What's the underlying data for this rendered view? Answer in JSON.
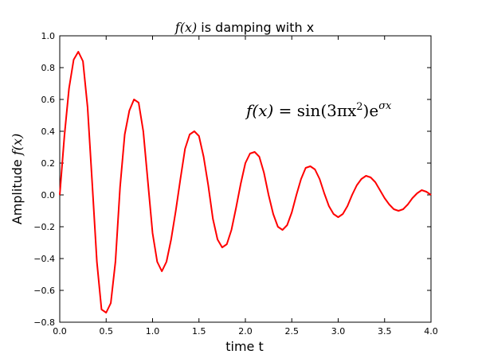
{
  "chart_data": {
    "type": "line",
    "title_math": "f(x)",
    "title_text": " is damping  with x",
    "xlabel": "time  t",
    "ylabel_text": "Amplitude  ",
    "ylabel_math": "f(x)",
    "annotation": "f(x) = sin(3πx²)e^(σx)",
    "annotation_parts": {
      "lhs": "f(x) = ",
      "sin": "sin",
      "arg": "(3πx",
      "arg_sup": "2",
      "arg_close": ")e",
      "exp": "σx"
    },
    "xlim": [
      0.0,
      4.0
    ],
    "ylim": [
      -0.8,
      1.0
    ],
    "xticks": [
      "0.0",
      "0.5",
      "1.0",
      "1.5",
      "2.0",
      "2.5",
      "3.0",
      "3.5",
      "4.0"
    ],
    "yticks": [
      "−0.8",
      "−0.6",
      "−0.4",
      "−0.2",
      "0.0",
      "0.2",
      "0.4",
      "0.6",
      "0.8",
      "1.0"
    ],
    "grid": false,
    "series": [
      {
        "color": "#ff0000",
        "x": [
          0.0,
          0.05,
          0.1,
          0.15,
          0.2,
          0.25,
          0.3,
          0.35,
          0.4,
          0.45,
          0.5,
          0.55,
          0.6,
          0.65,
          0.7,
          0.75,
          0.8,
          0.85,
          0.9,
          0.95,
          1.0,
          1.05,
          1.1,
          1.15,
          1.2,
          1.25,
          1.3,
          1.35,
          1.4,
          1.45,
          1.5,
          1.55,
          1.6,
          1.65,
          1.7,
          1.75,
          1.8,
          1.85,
          1.9,
          1.95,
          2.0,
          2.05,
          2.1,
          2.15,
          2.2,
          2.25,
          2.3,
          2.35,
          2.4,
          2.45,
          2.5,
          2.55,
          2.6,
          2.65,
          2.7,
          2.75,
          2.8,
          2.85,
          2.9,
          2.95,
          3.0,
          3.05,
          3.1,
          3.15,
          3.2,
          3.25,
          3.3,
          3.35,
          3.4,
          3.45,
          3.5,
          3.55,
          3.6,
          3.65,
          3.7,
          3.75,
          3.8,
          3.85,
          3.9,
          3.95,
          4.0
        ],
        "y": [
          0.0,
          0.37,
          0.67,
          0.85,
          0.9,
          0.84,
          0.55,
          0.07,
          -0.42,
          -0.72,
          -0.74,
          -0.68,
          -0.42,
          0.05,
          0.38,
          0.53,
          0.6,
          0.58,
          0.4,
          0.08,
          -0.24,
          -0.42,
          -0.48,
          -0.42,
          -0.28,
          -0.1,
          0.1,
          0.29,
          0.38,
          0.4,
          0.37,
          0.24,
          0.06,
          -0.15,
          -0.28,
          -0.33,
          -0.31,
          -0.22,
          -0.08,
          0.07,
          0.2,
          0.26,
          0.27,
          0.24,
          0.14,
          0.0,
          -0.12,
          -0.2,
          -0.22,
          -0.19,
          -0.11,
          0.0,
          0.1,
          0.17,
          0.18,
          0.16,
          0.1,
          0.01,
          -0.07,
          -0.12,
          -0.14,
          -0.12,
          -0.07,
          0.0,
          0.06,
          0.1,
          0.12,
          0.11,
          0.08,
          0.03,
          -0.02,
          -0.06,
          -0.09,
          -0.1,
          -0.09,
          -0.06,
          -0.02,
          0.01,
          0.03,
          0.02,
          0.0
        ]
      }
    ]
  }
}
